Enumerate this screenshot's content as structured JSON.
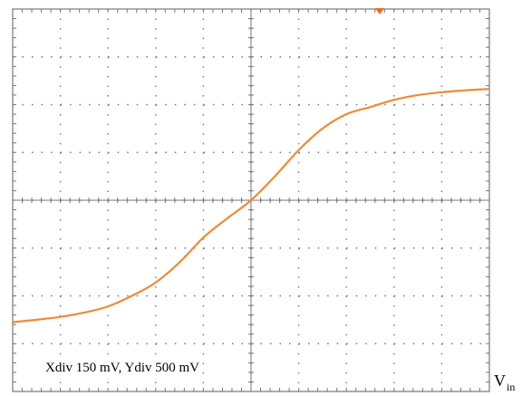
{
  "chart_data": {
    "type": "line",
    "title": "",
    "annotation": "Xdiv 150 mV, Ydiv 500 mV",
    "xlabel": "V",
    "xlabel_subscript": "in",
    "ylabel": "",
    "grid": true,
    "grid_divisions": {
      "x": 10,
      "y": 8
    },
    "xlim_div": [
      -5,
      5
    ],
    "ylim_div": [
      -4,
      4
    ],
    "colors": {
      "trace": "#ef8a3a",
      "grid": "#777777",
      "background": "#ffffff",
      "marker": "#ef6a1a"
    },
    "trigger_marker": {
      "x_div": 2.7,
      "shape": "triangle-down",
      "color": "#ef6a1a"
    },
    "series": [
      {
        "x": [
          -5.0,
          -4.5,
          -4.0,
          -3.5,
          -3.0,
          -2.5,
          -2.0,
          -1.5,
          -1.0,
          -0.5,
          0.0,
          0.5,
          1.0,
          1.5,
          2.0,
          2.5,
          3.0,
          3.5,
          4.0,
          4.5,
          5.0
        ],
        "y": [
          -2.55,
          -2.5,
          -2.44,
          -2.35,
          -2.22,
          -2.0,
          -1.72,
          -1.3,
          -0.78,
          -0.38,
          0.0,
          0.5,
          1.05,
          1.5,
          1.8,
          1.95,
          2.1,
          2.2,
          2.26,
          2.3,
          2.33
        ]
      }
    ]
  }
}
